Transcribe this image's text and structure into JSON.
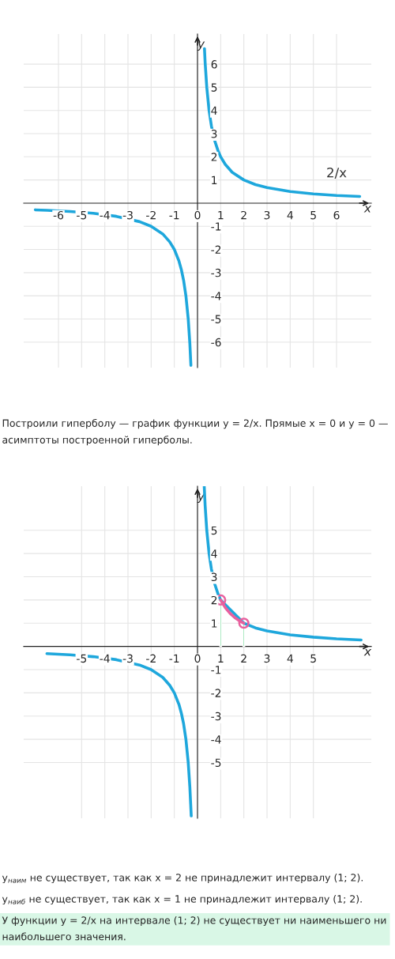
{
  "chart_data": [
    {
      "type": "line",
      "xlabel": "x",
      "ylabel": "y",
      "xlim": [
        -7.5,
        7.5
      ],
      "ylim": [
        -7.1,
        7.3
      ],
      "xticks": [
        -6,
        -5,
        -4,
        -3,
        -2,
        -1,
        0,
        1,
        2,
        3,
        4,
        5,
        6
      ],
      "yticks": [
        -6,
        -5,
        -4,
        -3,
        -2,
        -1,
        1,
        2,
        3,
        4,
        5,
        6
      ],
      "grid": true,
      "series": [
        {
          "name": "2/x",
          "color": "#1ea7dc",
          "x": [
            0.3,
            0.33,
            0.4,
            0.5,
            0.6,
            0.75,
            0.9,
            1,
            1.2,
            1.5,
            2,
            2.5,
            3,
            4,
            5,
            6,
            7
          ],
          "values": [
            6.67,
            6.06,
            5,
            4,
            3.33,
            2.67,
            2.22,
            2,
            1.67,
            1.33,
            1,
            0.8,
            0.67,
            0.5,
            0.4,
            0.33,
            0.29
          ]
        },
        {
          "color": "#1ea7dc",
          "x": [
            -7,
            -6.5,
            -5.5,
            -4.5,
            -3.5,
            -2.5,
            -2,
            -1.5,
            -1.2,
            -1,
            -0.8,
            -0.7,
            -0.6,
            -0.5,
            -0.4,
            -0.33,
            -0.285
          ],
          "values": [
            -0.29,
            -0.31,
            -0.36,
            -0.44,
            -0.57,
            -0.8,
            -1,
            -1.33,
            -1.67,
            -2,
            -2.5,
            -2.86,
            -3.33,
            -4,
            -5,
            -6.06,
            -7.0
          ]
        }
      ],
      "annotations": [
        "Построили гиперболу — график функции y = 2/x. Прямые x = 0 и y = 0 — асимптоты построенной гиперболы."
      ]
    },
    {
      "type": "line",
      "xlabel": "x",
      "ylabel": "y",
      "xlim": [
        -7.5,
        7.5
      ],
      "ylim": [
        -7.4,
        6.9
      ],
      "xticks": [
        -5,
        -4,
        -3,
        -2,
        -1,
        0,
        1,
        2,
        3,
        4,
        5
      ],
      "yticks": [
        -5,
        -4,
        -3,
        -2,
        -1,
        1,
        2,
        3,
        4,
        5
      ],
      "grid": true,
      "series": [
        {
          "type": "bar",
          "color": "#86e0a6",
          "x": [
            1,
            2
          ],
          "values": [
            2,
            1
          ]
        },
        {
          "color": "#1ea7dc",
          "x": [
            0.29,
            0.33,
            0.4,
            0.5,
            0.6,
            0.75,
            0.9,
            1,
            1.2,
            1.5,
            2,
            2.5,
            3,
            4,
            5,
            6,
            7.06
          ],
          "values": [
            6.9,
            6.06,
            5,
            4,
            3.33,
            2.67,
            2.22,
            2,
            null,
            null,
            1,
            0.8,
            0.67,
            0.5,
            0.4,
            0.33,
            0.28
          ]
        },
        {
          "color": "#e8609e",
          "x": [
            1,
            1.2,
            1.4,
            1.6,
            1.8,
            2
          ],
          "values": [
            2,
            1.67,
            1.43,
            1.25,
            1.11,
            1
          ]
        },
        {
          "color": "#1ea7dc",
          "x": [
            -6.5,
            -5.5,
            -4.5,
            -3.5,
            -2.5,
            -2,
            -1.5,
            -1.2,
            -1,
            -0.8,
            -0.7,
            -0.6,
            -0.5,
            -0.4,
            -0.33,
            -0.27
          ],
          "values": [
            -0.31,
            -0.36,
            -0.44,
            -0.57,
            -0.8,
            -1,
            -1.33,
            -1.67,
            -2,
            -2.5,
            -2.86,
            -3.33,
            -4,
            -5,
            -6.06,
            -7.3
          ]
        },
        {
          "type": "scatter",
          "color": "#e8609e",
          "marker": "circle",
          "x": [
            1,
            2
          ],
          "values": [
            2,
            1
          ]
        }
      ],
      "annotations": [
        "y$_{наим}$ не существует, так как x = 2 не принадлежит интервалу (1; 2).",
        "y$_{наиб}$ не существует, так как x = 1 не принадлежит интервалу (1; 2).",
        "У функции y = 2/x на интервале (1; 2) не существует ни наименьшего ни наибольшего значения."
      ]
    }
  ]
}
